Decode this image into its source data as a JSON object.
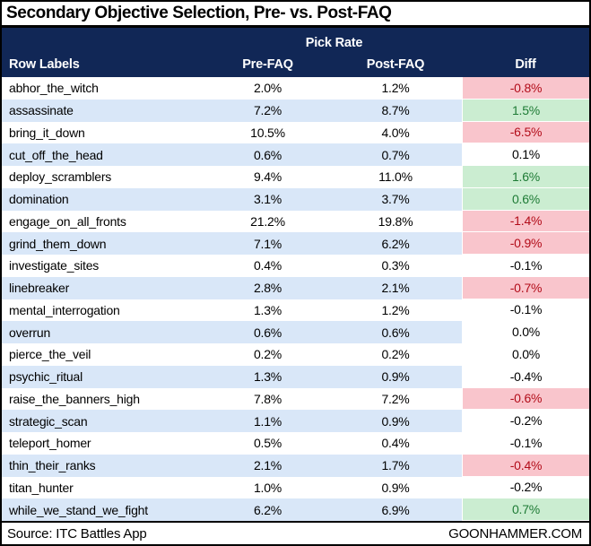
{
  "title": "Secondary Objective Selection, Pre- vs. Post-FAQ",
  "footer": {
    "source": "Source: ITC Battles App",
    "brand": "GOONHAMMER.COM"
  },
  "colors": {
    "header_navy": "#112756",
    "stripe_blue": "#D9E7F8",
    "diff_negative_bg": "#F9C5CC",
    "diff_negative_text": "#B20C19",
    "diff_positive_bg": "#CBEDD1",
    "diff_positive_text": "#1E7B35"
  },
  "chart_data": {
    "type": "table",
    "title": "Secondary Objective Selection, Pre- vs. Post-FAQ",
    "group_header": "Pick Rate",
    "columns": [
      "Row Labels",
      "Pre-FAQ",
      "Post-FAQ",
      "Diff"
    ],
    "rows": [
      {
        "label": "abhor_the_witch",
        "pre": "2.0%",
        "post": "1.2%",
        "diff": "-0.8%",
        "highlight": "bad"
      },
      {
        "label": "assassinate",
        "pre": "7.2%",
        "post": "8.7%",
        "diff": "1.5%",
        "highlight": "good"
      },
      {
        "label": "bring_it_down",
        "pre": "10.5%",
        "post": "4.0%",
        "diff": "-6.5%",
        "highlight": "bad"
      },
      {
        "label": "cut_off_the_head",
        "pre": "0.6%",
        "post": "0.7%",
        "diff": "0.1%",
        "highlight": "neutral"
      },
      {
        "label": "deploy_scramblers",
        "pre": "9.4%",
        "post": "11.0%",
        "diff": "1.6%",
        "highlight": "good"
      },
      {
        "label": "domination",
        "pre": "3.1%",
        "post": "3.7%",
        "diff": "0.6%",
        "highlight": "good"
      },
      {
        "label": "engage_on_all_fronts",
        "pre": "21.2%",
        "post": "19.8%",
        "diff": "-1.4%",
        "highlight": "bad"
      },
      {
        "label": "grind_them_down",
        "pre": "7.1%",
        "post": "6.2%",
        "diff": "-0.9%",
        "highlight": "bad"
      },
      {
        "label": "investigate_sites",
        "pre": "0.4%",
        "post": "0.3%",
        "diff": "-0.1%",
        "highlight": "neutral"
      },
      {
        "label": "linebreaker",
        "pre": "2.8%",
        "post": "2.1%",
        "diff": "-0.7%",
        "highlight": "bad"
      },
      {
        "label": "mental_interrogation",
        "pre": "1.3%",
        "post": "1.2%",
        "diff": "-0.1%",
        "highlight": "neutral"
      },
      {
        "label": "overrun",
        "pre": "0.6%",
        "post": "0.6%",
        "diff": "0.0%",
        "highlight": "neutral"
      },
      {
        "label": "pierce_the_veil",
        "pre": "0.2%",
        "post": "0.2%",
        "diff": "0.0%",
        "highlight": "neutral"
      },
      {
        "label": "psychic_ritual",
        "pre": "1.3%",
        "post": "0.9%",
        "diff": "-0.4%",
        "highlight": "neutral"
      },
      {
        "label": "raise_the_banners_high",
        "pre": "7.8%",
        "post": "7.2%",
        "diff": "-0.6%",
        "highlight": "bad"
      },
      {
        "label": "strategic_scan",
        "pre": "1.1%",
        "post": "0.9%",
        "diff": "-0.2%",
        "highlight": "neutral"
      },
      {
        "label": "teleport_homer",
        "pre": "0.5%",
        "post": "0.4%",
        "diff": "-0.1%",
        "highlight": "neutral"
      },
      {
        "label": "thin_their_ranks",
        "pre": "2.1%",
        "post": "1.7%",
        "diff": "-0.4%",
        "highlight": "bad"
      },
      {
        "label": "titan_hunter",
        "pre": "1.0%",
        "post": "0.9%",
        "diff": "-0.2%",
        "highlight": "neutral"
      },
      {
        "label": "while_we_stand_we_fight",
        "pre": "6.2%",
        "post": "6.9%",
        "diff": "0.7%",
        "highlight": "good"
      }
    ]
  }
}
